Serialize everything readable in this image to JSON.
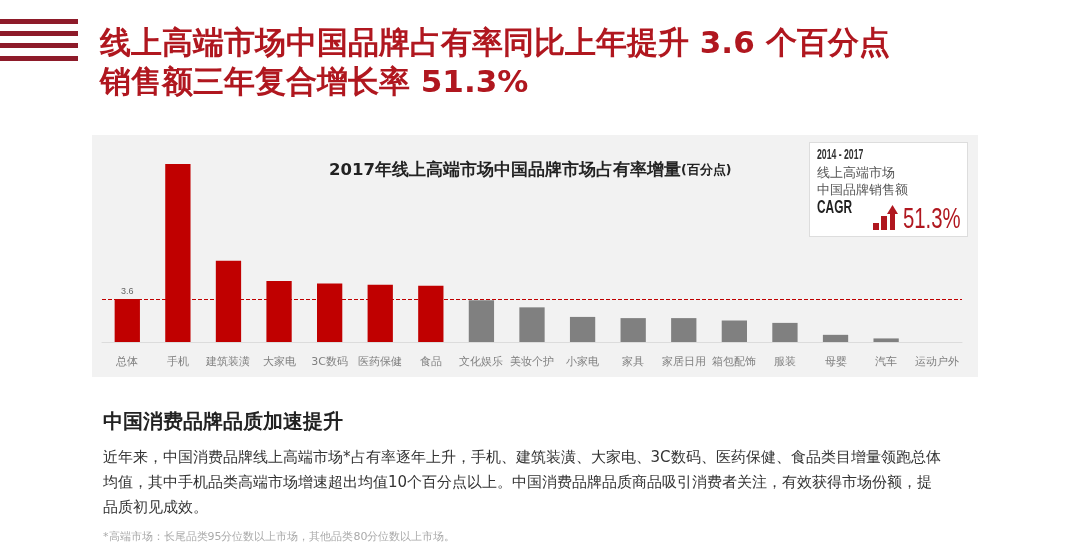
{
  "chart_data": {
    "type": "bar",
    "title": "2017年线上高端市场中国品牌市场占有率增量(百分点)",
    "categories": [
      "总体",
      "手机",
      "建筑装潢",
      "大家电",
      "3C数码",
      "医药保健",
      "食品",
      "文化娱乐",
      "美妆个护",
      "小家电",
      "家具",
      "家居日用",
      "箱包配饰",
      "服装",
      "母婴",
      "汽车",
      "运动户外"
    ],
    "values": [
      3.6,
      14.9,
      6.8,
      5.1,
      4.9,
      4.8,
      4.7,
      3.5,
      2.9,
      2.1,
      2.0,
      2.0,
      1.8,
      1.6,
      0.6,
      0.3,
      0
    ],
    "colors": [
      "#c00000",
      "#c00000",
      "#c00000",
      "#c00000",
      "#c00000",
      "#c00000",
      "#c00000",
      "#808080",
      "#808080",
      "#808080",
      "#808080",
      "#808080",
      "#808080",
      "#808080",
      "#808080",
      "#808080",
      "#808080"
    ],
    "value_labels": [
      "3.6",
      null,
      null,
      null,
      null,
      null,
      null,
      null,
      null,
      null,
      null,
      null,
      null,
      null,
      null,
      null,
      null
    ],
    "ref_lines": [
      {
        "axis": "y",
        "value": 3.6,
        "color": "#c00000",
        "line_style": "dashed"
      }
    ],
    "tick_labels": "x",
    "annotations": [
      "线上高端市场中国品牌占有率同比上年提升 3.6 个百分点",
      "销售额三年复合增长率 51.3%",
      "2014 - 2017",
      "线上高端市场",
      "中国品牌销售额",
      "CAGR",
      "51.3%",
      "中国消费品牌品质加速提升",
      "近年来，中国消费品牌线上高端市场*占有率逐年上升，手机、建筑装潢、大家电、3C数码、医药保健、食品类目增量领跑总体均值，其中手机品类高端市场增速超出均值10个百分点以上。中国消费品牌品质商品吸引消费者关注，有效获得市场份额，提品质初见成效。",
      "*高端市场：长尾品类95分位数以上市场，其他品类80分位数以上市场。"
    ]
  }
}
